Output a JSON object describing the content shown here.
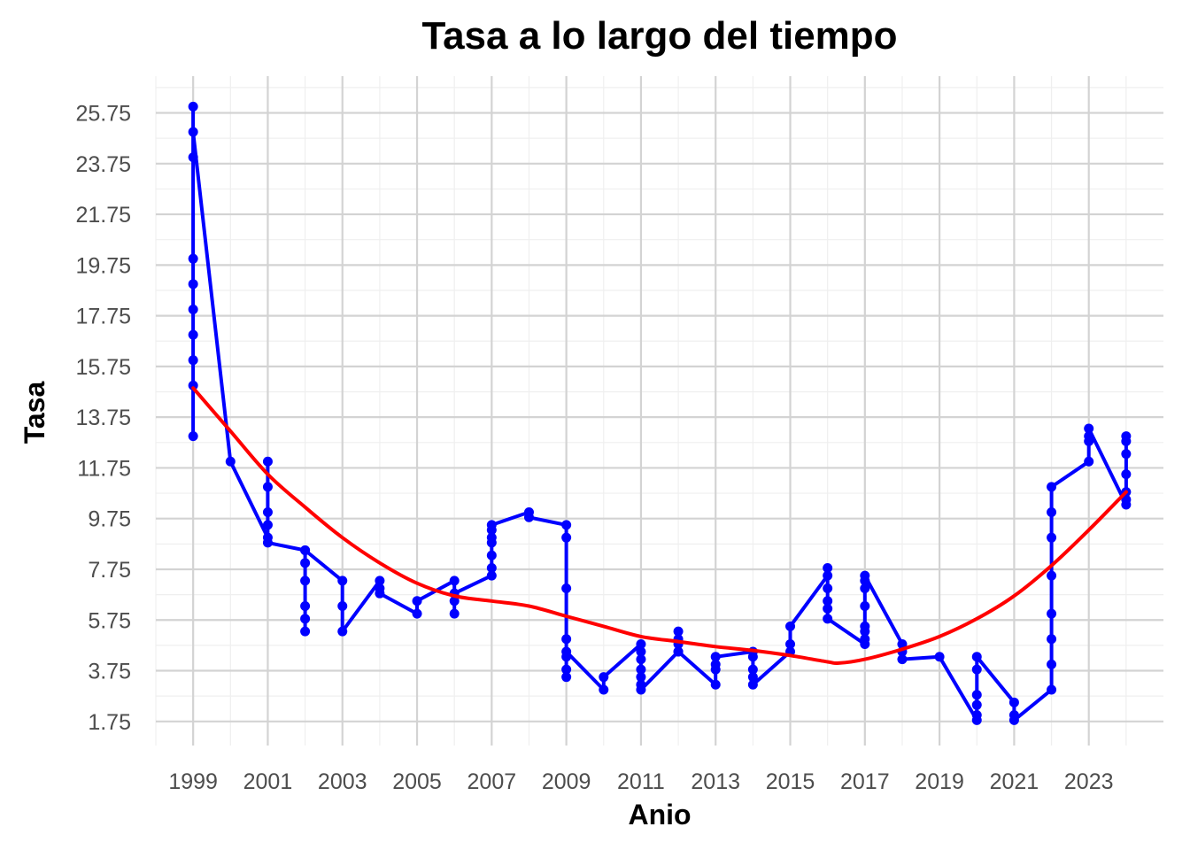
{
  "chart_data": {
    "type": "line",
    "title": "Tasa a lo largo del tiempo",
    "xlabel": "Anio",
    "ylabel": "Tasa",
    "xlim": [
      1998.0,
      2025.0
    ],
    "ylim": [
      0.8,
      27.2
    ],
    "xticks": [
      "1999",
      "2001",
      "2003",
      "2005",
      "2007",
      "2009",
      "2011",
      "2013",
      "2015",
      "2017",
      "2019",
      "2021",
      "2023"
    ],
    "yticks": [
      "1.75",
      "3.75",
      "5.75",
      "7.75",
      "9.75",
      "11.75",
      "13.75",
      "15.75",
      "17.75",
      "19.75",
      "21.75",
      "23.75",
      "25.75"
    ],
    "grid": true,
    "colors": {
      "series": "#0000ff",
      "trend": "#ff0000",
      "grid_major": "#d3d3d3",
      "grid_minor": "#efefef"
    },
    "series": [
      {
        "values": [
          [
            1999,
            26.0
          ],
          [
            1999,
            24.0
          ],
          [
            1999,
            20.0
          ],
          [
            1999,
            19.0
          ],
          [
            1999,
            18.0
          ],
          [
            1999,
            17.0
          ],
          [
            1999,
            16.0
          ],
          [
            1999,
            15.0
          ],
          [
            1999,
            13.0
          ],
          [
            1999,
            25.0
          ],
          [
            2000,
            12.0
          ],
          [
            2001,
            9.0
          ],
          [
            2001,
            9.5
          ],
          [
            2001,
            10.0
          ],
          [
            2001,
            11.0
          ],
          [
            2001,
            12.0
          ],
          [
            2001,
            8.8
          ],
          [
            2002,
            8.5
          ],
          [
            2002,
            8.0
          ],
          [
            2002,
            7.3
          ],
          [
            2002,
            6.3
          ],
          [
            2002,
            5.8
          ],
          [
            2002,
            5.3
          ],
          [
            2002,
            8.5
          ],
          [
            2003,
            7.3
          ],
          [
            2003,
            6.3
          ],
          [
            2003,
            5.3
          ],
          [
            2004,
            7.3
          ],
          [
            2004,
            7.0
          ],
          [
            2004,
            6.8
          ],
          [
            2005,
            6.0
          ],
          [
            2005,
            6.5
          ],
          [
            2006,
            7.3
          ],
          [
            2006,
            6.5
          ],
          [
            2006,
            6.0
          ],
          [
            2006,
            6.8
          ],
          [
            2007,
            7.5
          ],
          [
            2007,
            7.8
          ],
          [
            2007,
            8.3
          ],
          [
            2007,
            8.8
          ],
          [
            2007,
            9.0
          ],
          [
            2007,
            9.3
          ],
          [
            2007,
            9.5
          ],
          [
            2008,
            10.0
          ],
          [
            2008,
            9.8
          ],
          [
            2009,
            9.5
          ],
          [
            2009,
            9.0
          ],
          [
            2009,
            7.0
          ],
          [
            2009,
            5.0
          ],
          [
            2009,
            4.3
          ],
          [
            2009,
            3.8
          ],
          [
            2009,
            3.5
          ],
          [
            2009,
            4.5
          ],
          [
            2010,
            3.0
          ],
          [
            2010,
            3.5
          ],
          [
            2011,
            4.8
          ],
          [
            2011,
            4.5
          ],
          [
            2011,
            4.2
          ],
          [
            2011,
            3.8
          ],
          [
            2011,
            3.5
          ],
          [
            2011,
            3.2
          ],
          [
            2011,
            3.0
          ],
          [
            2012,
            4.5
          ],
          [
            2012,
            4.8
          ],
          [
            2012,
            5.0
          ],
          [
            2012,
            5.3
          ],
          [
            2012,
            4.5
          ],
          [
            2013,
            3.2
          ],
          [
            2013,
            3.8
          ],
          [
            2013,
            4.0
          ],
          [
            2013,
            4.3
          ],
          [
            2014,
            4.5
          ],
          [
            2014,
            4.3
          ],
          [
            2014,
            3.8
          ],
          [
            2014,
            3.5
          ],
          [
            2014,
            3.2
          ],
          [
            2015,
            4.5
          ],
          [
            2015,
            4.8
          ],
          [
            2015,
            5.5
          ],
          [
            2016,
            7.5
          ],
          [
            2016,
            7.8
          ],
          [
            2016,
            7.0
          ],
          [
            2016,
            6.5
          ],
          [
            2016,
            6.2
          ],
          [
            2016,
            5.8
          ],
          [
            2017,
            4.8
          ],
          [
            2017,
            5.0
          ],
          [
            2017,
            5.3
          ],
          [
            2017,
            5.5
          ],
          [
            2017,
            6.3
          ],
          [
            2017,
            7.0
          ],
          [
            2017,
            7.3
          ],
          [
            2017,
            7.5
          ],
          [
            2018,
            4.8
          ],
          [
            2018,
            4.5
          ],
          [
            2018,
            4.2
          ],
          [
            2019,
            4.3
          ],
          [
            2020,
            1.8
          ],
          [
            2020,
            2.0
          ],
          [
            2020,
            2.4
          ],
          [
            2020,
            2.8
          ],
          [
            2020,
            3.8
          ],
          [
            2020,
            4.3
          ],
          [
            2021,
            2.5
          ],
          [
            2021,
            2.0
          ],
          [
            2021,
            1.8
          ],
          [
            2022,
            3.0
          ],
          [
            2022,
            4.0
          ],
          [
            2022,
            5.0
          ],
          [
            2022,
            6.0
          ],
          [
            2022,
            7.5
          ],
          [
            2022,
            9.0
          ],
          [
            2022,
            10.0
          ],
          [
            2022,
            11.0
          ],
          [
            2023,
            12.0
          ],
          [
            2023,
            12.8
          ],
          [
            2023,
            13.0
          ],
          [
            2023,
            13.3
          ],
          [
            2024,
            10.3
          ],
          [
            2024,
            10.8
          ],
          [
            2024,
            11.5
          ],
          [
            2024,
            12.3
          ],
          [
            2024,
            12.8
          ],
          [
            2024,
            13.0
          ],
          [
            2024,
            10.5
          ]
        ]
      }
    ],
    "trend": {
      "x": [
        1999,
        2000,
        2001,
        2002,
        2003,
        2004,
        2005,
        2006,
        2007,
        2008,
        2009,
        2010,
        2011,
        2012,
        2013,
        2014,
        2015,
        2016,
        2016.3,
        2017,
        2018,
        2019,
        2020,
        2021,
        2022,
        2023,
        2024
      ],
      "y": [
        14.9,
        13.2,
        11.5,
        10.2,
        9.0,
        8.0,
        7.2,
        6.7,
        6.5,
        6.3,
        5.9,
        5.5,
        5.1,
        4.9,
        4.7,
        4.55,
        4.35,
        4.1,
        4.05,
        4.2,
        4.6,
        5.1,
        5.8,
        6.7,
        7.9,
        9.3,
        10.8
      ]
    }
  }
}
